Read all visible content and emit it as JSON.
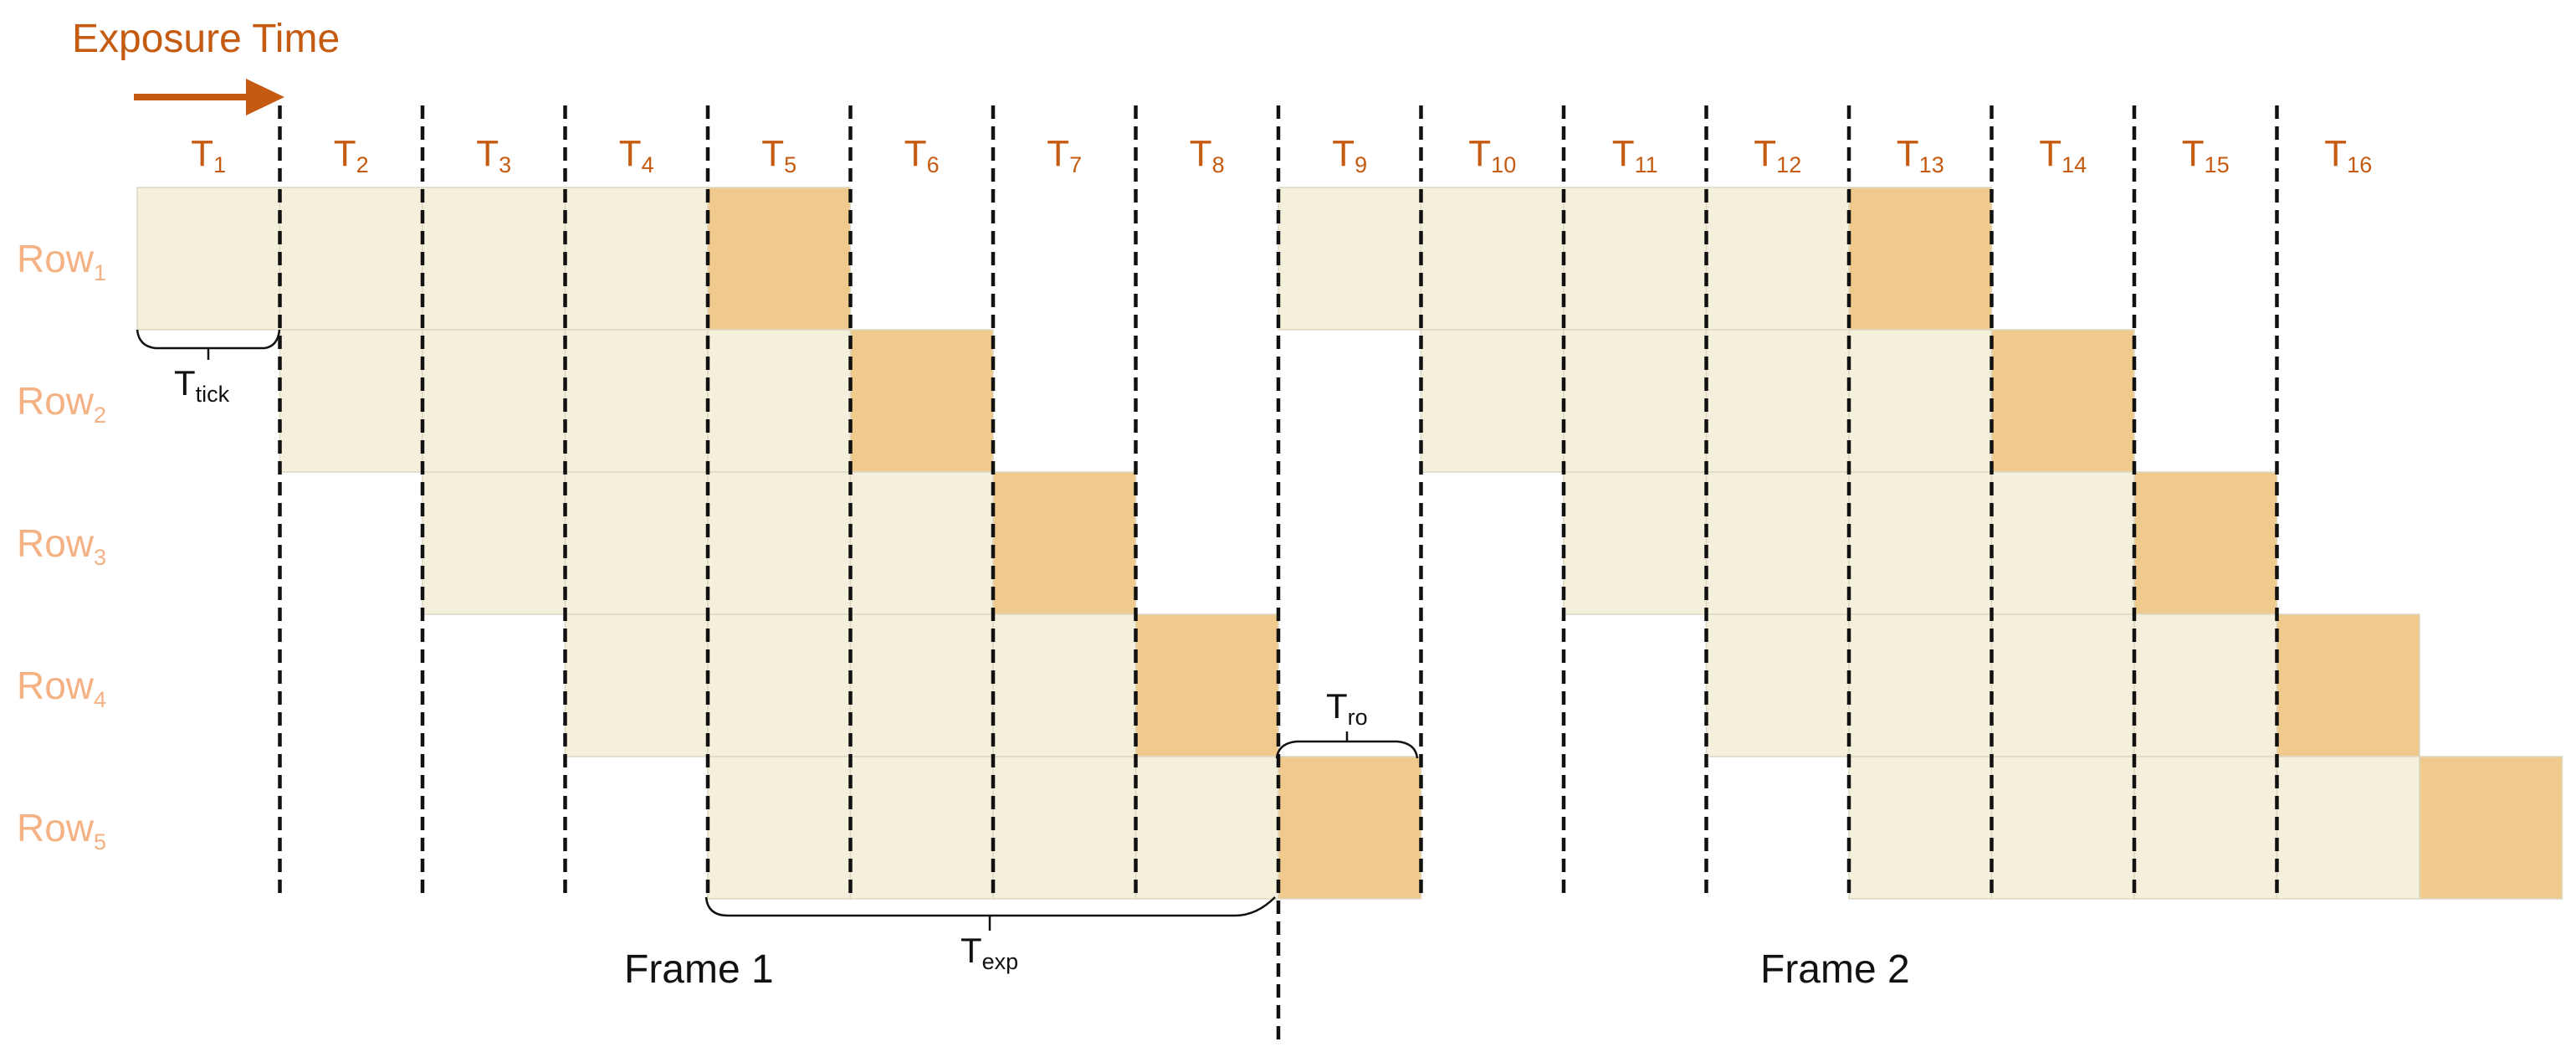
{
  "title": "Exposure Time",
  "colors": {
    "accent": "#c55a11",
    "row_label": "#f4b183",
    "cell_light": "#f4f0dc",
    "cell_dark": "#f0c98c",
    "cell_border": "#dcd8c4",
    "line": "#111111"
  },
  "ticks": [
    {
      "main": "T",
      "sub": "1"
    },
    {
      "main": "T",
      "sub": "2"
    },
    {
      "main": "T",
      "sub": "3"
    },
    {
      "main": "T",
      "sub": "4"
    },
    {
      "main": "T",
      "sub": "5"
    },
    {
      "main": "T",
      "sub": "6"
    },
    {
      "main": "T",
      "sub": "7"
    },
    {
      "main": "T",
      "sub": "8"
    },
    {
      "main": "T",
      "sub": "9"
    },
    {
      "main": "T",
      "sub": "10"
    },
    {
      "main": "T",
      "sub": "11"
    },
    {
      "main": "T",
      "sub": "12"
    },
    {
      "main": "T",
      "sub": "13"
    },
    {
      "main": "T",
      "sub": "14"
    },
    {
      "main": "T",
      "sub": "15"
    },
    {
      "main": "T",
      "sub": "16"
    }
  ],
  "rows": [
    {
      "main": "Row",
      "sub": "1"
    },
    {
      "main": "Row",
      "sub": "2"
    },
    {
      "main": "Row",
      "sub": "3"
    },
    {
      "main": "Row",
      "sub": "4"
    },
    {
      "main": "Row",
      "sub": "5"
    }
  ],
  "exposure_ticks": 4,
  "frames": [
    {
      "label": "Frame 1",
      "start_tick": 1
    },
    {
      "label": "Frame 2",
      "start_tick": 9
    }
  ],
  "annotations": {
    "tick": {
      "main": "T",
      "sub": "tick"
    },
    "readout": {
      "main": "T",
      "sub": "ro"
    },
    "exposure": {
      "main": "T",
      "sub": "exp"
    }
  }
}
